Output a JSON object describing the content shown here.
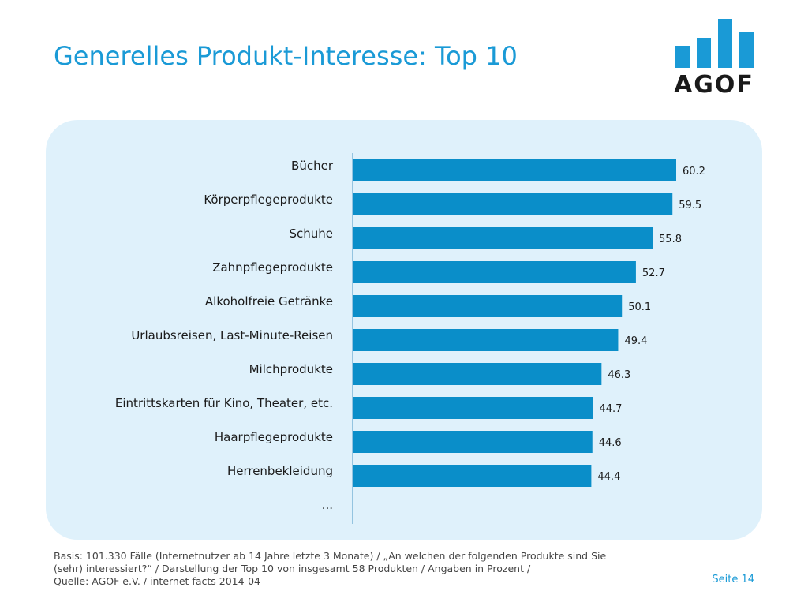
{
  "title": "Generelles Produkt-Interesse: Top 10",
  "logo": {
    "text": "AGOF",
    "color": "#1a9ad6"
  },
  "chart_data": {
    "type": "bar",
    "orientation": "horizontal",
    "categories": [
      "Bücher",
      "Körperpflegeprodukte",
      "Schuhe",
      "Zahnpflegeprodukte",
      "Alkoholfreie Getränke",
      "Urlaubsreisen, Last-Minute-Reisen",
      "Milchprodukte",
      "Eintrittskarten für Kino, Theater, etc.",
      "Haarpflegeprodukte",
      "Herrenbekleidung"
    ],
    "values": [
      60.2,
      59.5,
      55.8,
      52.7,
      50.1,
      49.4,
      46.3,
      44.7,
      44.6,
      44.4
    ],
    "value_labels": [
      "60.2",
      "59.5",
      "55.8",
      "52.7",
      "50.1",
      "49.4",
      "46.3",
      "44.7",
      "44.6",
      "44.4"
    ],
    "trailing_label": "...",
    "bar_color": "#0a8ec9",
    "xlim": [
      0,
      60.2
    ],
    "grid": false,
    "legend": "none"
  },
  "footer": {
    "line1": "Basis: 101.330 Fälle (Internetnutzer ab 14 Jahre letzte 3 Monate) / „An welchen der folgenden Produkte sind Sie",
    "line2": "(sehr) interessiert?“ / Darstellung der Top 10 von insgesamt 58 Produkten / Angaben in Prozent /",
    "line3": "Quelle: AGOF e.V. / internet facts 2014-04"
  },
  "page_label": "Seite 14"
}
